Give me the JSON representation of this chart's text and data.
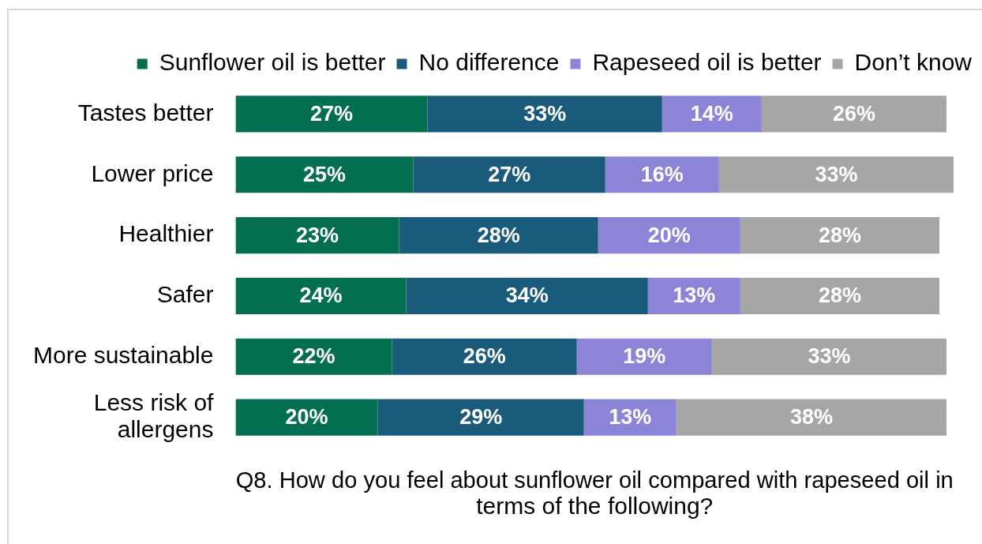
{
  "chart_data": {
    "type": "bar",
    "orientation": "horizontal",
    "stacked": true,
    "legend": "top",
    "tick_labels": "y",
    "categories": [
      "Tastes better",
      "Lower price",
      "Healthier",
      "Safer",
      "More sustainable",
      "Less risk of allergens"
    ],
    "series": [
      {
        "name": "Sunflower oil is better",
        "color": "#046f50",
        "values": [
          27,
          25,
          23,
          24,
          22,
          20
        ],
        "value_labels": [
          "27%",
          "25%",
          "23%",
          "24%",
          "22%",
          "20%"
        ]
      },
      {
        "name": "No difference",
        "color": "#1a5b7b",
        "values": [
          33,
          27,
          28,
          34,
          26,
          29
        ],
        "value_labels": [
          "33%",
          "27%",
          "28%",
          "34%",
          "26%",
          "29%"
        ]
      },
      {
        "name": "Rapeseed oil is better",
        "color": "#8c85d7",
        "values": [
          14,
          16,
          20,
          13,
          19,
          13
        ],
        "value_labels": [
          "14%",
          "16%",
          "20%",
          "13%",
          "19%",
          "13%"
        ]
      },
      {
        "name": "Don’t know",
        "color": "#a6a6a6",
        "values": [
          26,
          33,
          28,
          28,
          33,
          38
        ],
        "value_labels": [
          "26%",
          "33%",
          "28%",
          "28%",
          "33%",
          "38%"
        ]
      }
    ],
    "xlabel": "Q8. How do you feel about sunflower oil compared with rapeseed oil in terms of the following?"
  }
}
